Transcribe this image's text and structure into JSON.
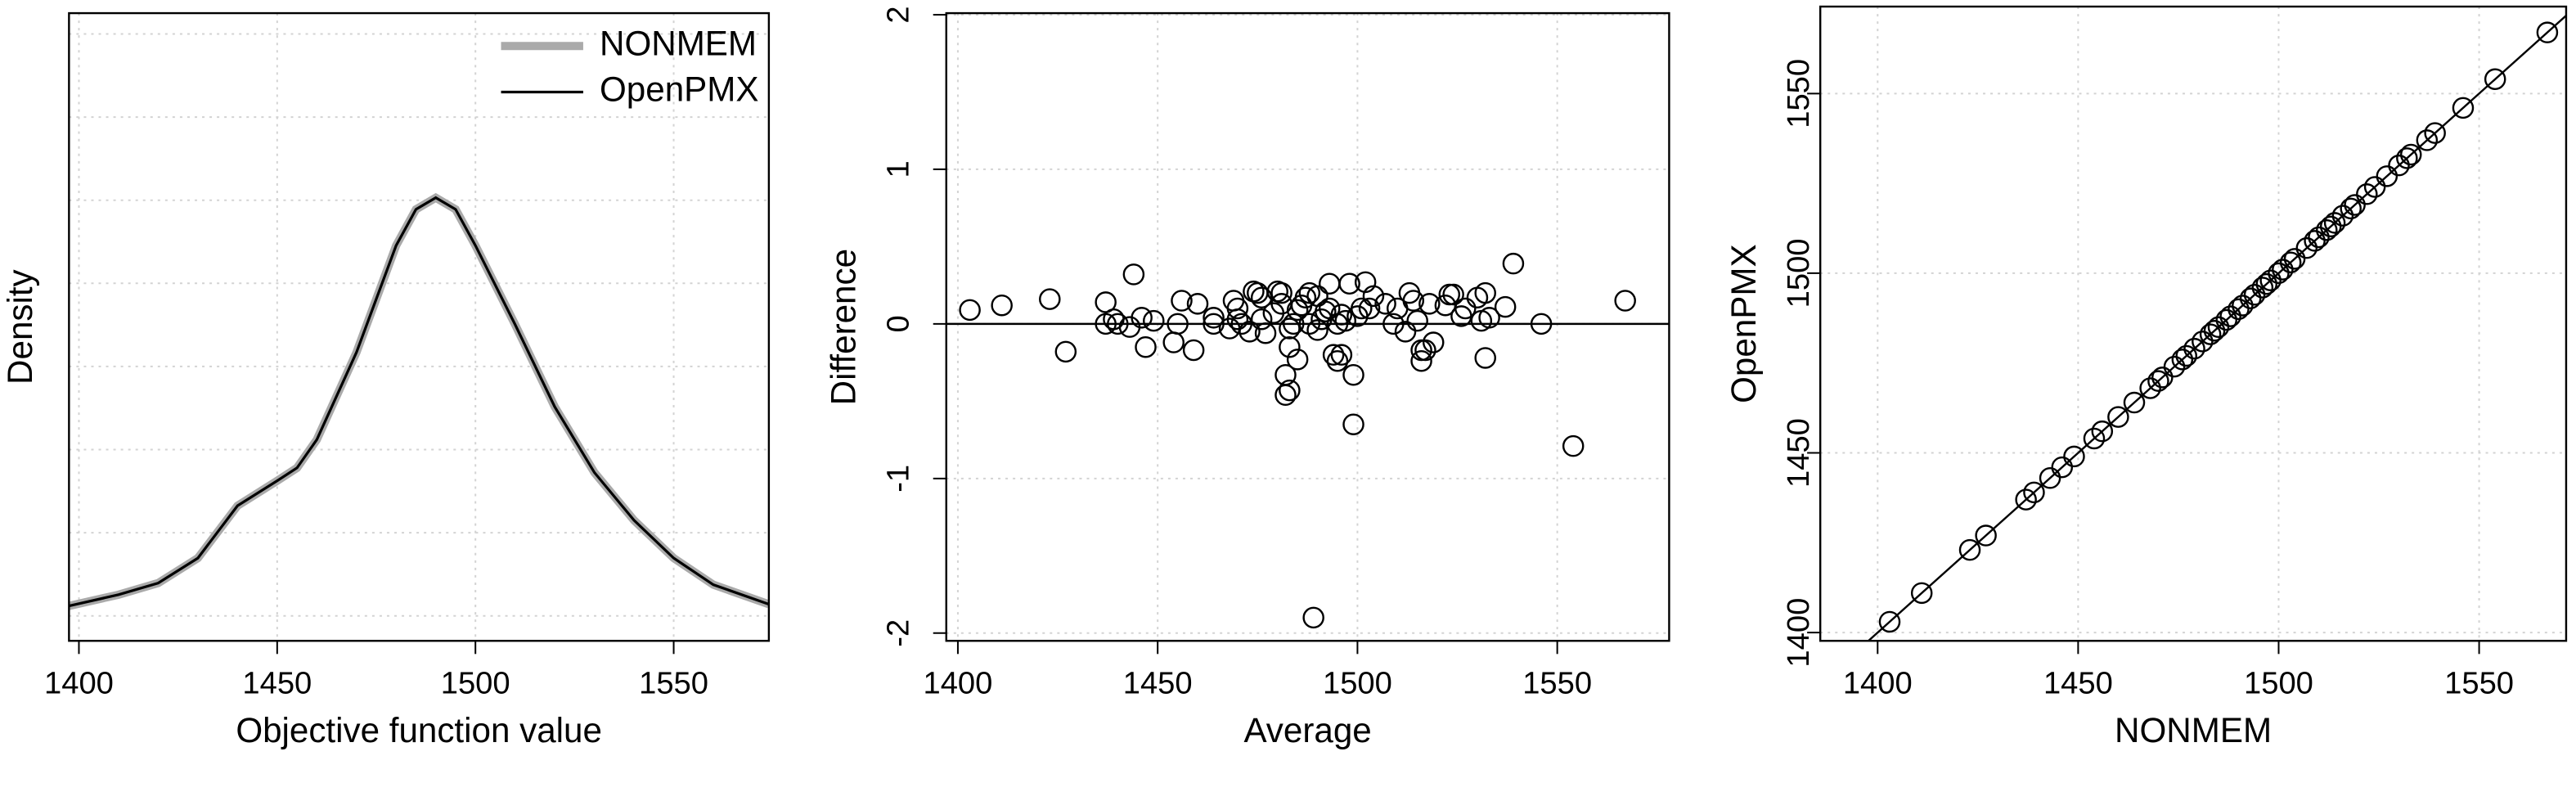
{
  "chart_data": [
    {
      "type": "line",
      "xlabel": "Objective function value",
      "ylabel": "Density",
      "x": [
        1397.5,
        1410,
        1420,
        1430,
        1440,
        1450,
        1455,
        1460,
        1470,
        1480,
        1485,
        1490,
        1495,
        1500,
        1510,
        1520,
        1530,
        1540,
        1550,
        1560,
        1574
      ],
      "series": [
        {
          "name": "NONMEM",
          "color": "#aaaaaa",
          "values": [
            0.00024,
            0.00051,
            0.00079,
            0.00139,
            0.00265,
            0.00325,
            0.00356,
            0.00424,
            0.00634,
            0.00891,
            0.00978,
            0.01006,
            0.00978,
            0.00891,
            0.00701,
            0.00503,
            0.00345,
            0.0023,
            0.00139,
            0.00075,
            0.00028
          ]
        },
        {
          "name": "OpenPMX",
          "color": "#000000",
          "values": [
            0.00024,
            0.00051,
            0.00079,
            0.00139,
            0.00265,
            0.00325,
            0.00356,
            0.00424,
            0.00634,
            0.00891,
            0.00978,
            0.01006,
            0.00978,
            0.00891,
            0.00701,
            0.00503,
            0.00345,
            0.0023,
            0.00139,
            0.00075,
            0.00028
          ]
        }
      ],
      "xlim": [
        1397.5,
        1574
      ],
      "ylim": [
        -0.0006,
        0.0145
      ],
      "xticks": [
        1400,
        1450,
        1500,
        1550
      ],
      "yticks": [
        0,
        0.002,
        0.004,
        0.006,
        0.008,
        0.01,
        0.012,
        0.014
      ],
      "grid": true,
      "legend": "topright"
    },
    {
      "type": "scatter",
      "xlabel": "Average",
      "ylabel": "Difference",
      "x": [
        1403,
        1411,
        1423,
        1427,
        1437,
        1437,
        1439,
        1440,
        1443,
        1444,
        1446,
        1447,
        1449,
        1454,
        1455,
        1456,
        1459,
        1460,
        1464,
        1464,
        1468,
        1469,
        1470,
        1470,
        1471,
        1473,
        1474,
        1475,
        1476,
        1476,
        1477,
        1479,
        1480,
        1481,
        1481,
        1482,
        1482,
        1483,
        1483,
        1483,
        1484,
        1485,
        1485,
        1486,
        1487,
        1488,
        1488,
        1489,
        1490,
        1490,
        1491,
        1492,
        1493,
        1493,
        1494,
        1495,
        1495,
        1496,
        1496,
        1497,
        1498,
        1499,
        1499,
        1500,
        1501,
        1502,
        1503,
        1504,
        1507,
        1509,
        1510,
        1512,
        1513,
        1514,
        1515,
        1516,
        1516,
        1517,
        1518,
        1519,
        1522,
        1523,
        1524,
        1526,
        1527,
        1530,
        1531,
        1532,
        1532,
        1533,
        1537,
        1539,
        1546,
        1554,
        1567
      ],
      "values": [
        0.09,
        0.12,
        0.16,
        -0.18,
        0.14,
        0.0,
        0.03,
        0.0,
        -0.02,
        0.32,
        0.04,
        -0.15,
        0.02,
        -0.12,
        0.0,
        0.15,
        -0.17,
        0.13,
        0.04,
        0.0,
        -0.03,
        0.15,
        0.1,
        0.03,
        0.0,
        -0.05,
        0.21,
        0.2,
        0.17,
        0.03,
        -0.06,
        0.07,
        0.21,
        0.13,
        0.2,
        -0.33,
        -0.46,
        -0.43,
        -0.03,
        -0.15,
        0.0,
        0.09,
        -0.23,
        0.12,
        0.17,
        0.2,
        0.0,
        -1.9,
        0.18,
        -0.04,
        0.03,
        0.08,
        0.26,
        0.1,
        -0.2,
        -0.24,
        0.0,
        -0.2,
        0.06,
        0.02,
        0.26,
        -0.33,
        -0.65,
        0.05,
        0.1,
        0.27,
        0.1,
        0.18,
        0.13,
        0.0,
        0.1,
        -0.05,
        0.2,
        0.15,
        0.02,
        -0.17,
        -0.24,
        -0.17,
        0.13,
        -0.12,
        0.12,
        0.19,
        0.19,
        0.05,
        0.1,
        0.17,
        0.02,
        0.2,
        -0.22,
        0.04,
        0.11,
        0.39,
        0.0,
        -0.79,
        0.15
      ],
      "xlim": [
        1397.1,
        1578
      ],
      "ylim": [
        -2.05,
        2.01
      ],
      "xticks": [
        1400,
        1450,
        1500,
        1550
      ],
      "yticks": [
        -2,
        -1,
        0,
        1,
        2
      ],
      "grid": true,
      "hline": 0
    },
    {
      "type": "scatter",
      "xlabel": "NONMEM",
      "ylabel": "OpenPMX",
      "x": [
        1403,
        1411,
        1423,
        1427,
        1437,
        1439,
        1443,
        1446,
        1449,
        1454,
        1456,
        1460,
        1464,
        1468,
        1470,
        1471,
        1474,
        1476,
        1477,
        1479,
        1481,
        1483,
        1484,
        1485,
        1487,
        1488,
        1490,
        1491,
        1493,
        1494,
        1496,
        1497,
        1498,
        1500,
        1501,
        1503,
        1504,
        1507,
        1509,
        1510,
        1512,
        1513,
        1514,
        1516,
        1518,
        1519,
        1522,
        1524,
        1527,
        1530,
        1532,
        1533,
        1537,
        1539,
        1546,
        1554,
        1567
      ],
      "values": [
        1403,
        1411,
        1423,
        1427,
        1437,
        1439,
        1443,
        1446,
        1449,
        1454,
        1456,
        1460,
        1464,
        1468,
        1470,
        1471,
        1474,
        1476,
        1477,
        1479,
        1481,
        1483,
        1484,
        1485,
        1487,
        1488,
        1490,
        1491,
        1493,
        1494,
        1496,
        1497,
        1498,
        1500,
        1501,
        1503,
        1504,
        1507,
        1509,
        1510,
        1512,
        1513,
        1514,
        1516,
        1518,
        1519,
        1522,
        1524,
        1527,
        1530,
        1532,
        1533,
        1537,
        1539,
        1546,
        1554,
        1567
      ],
      "xlim": [
        1385.7,
        1571.7
      ],
      "ylim": [
        1397.7,
        1574.2
      ],
      "xticks": [
        1400,
        1450,
        1500,
        1550
      ],
      "yticks": [
        1400,
        1450,
        1500,
        1550
      ],
      "grid": true,
      "reference_line": "identity"
    }
  ]
}
